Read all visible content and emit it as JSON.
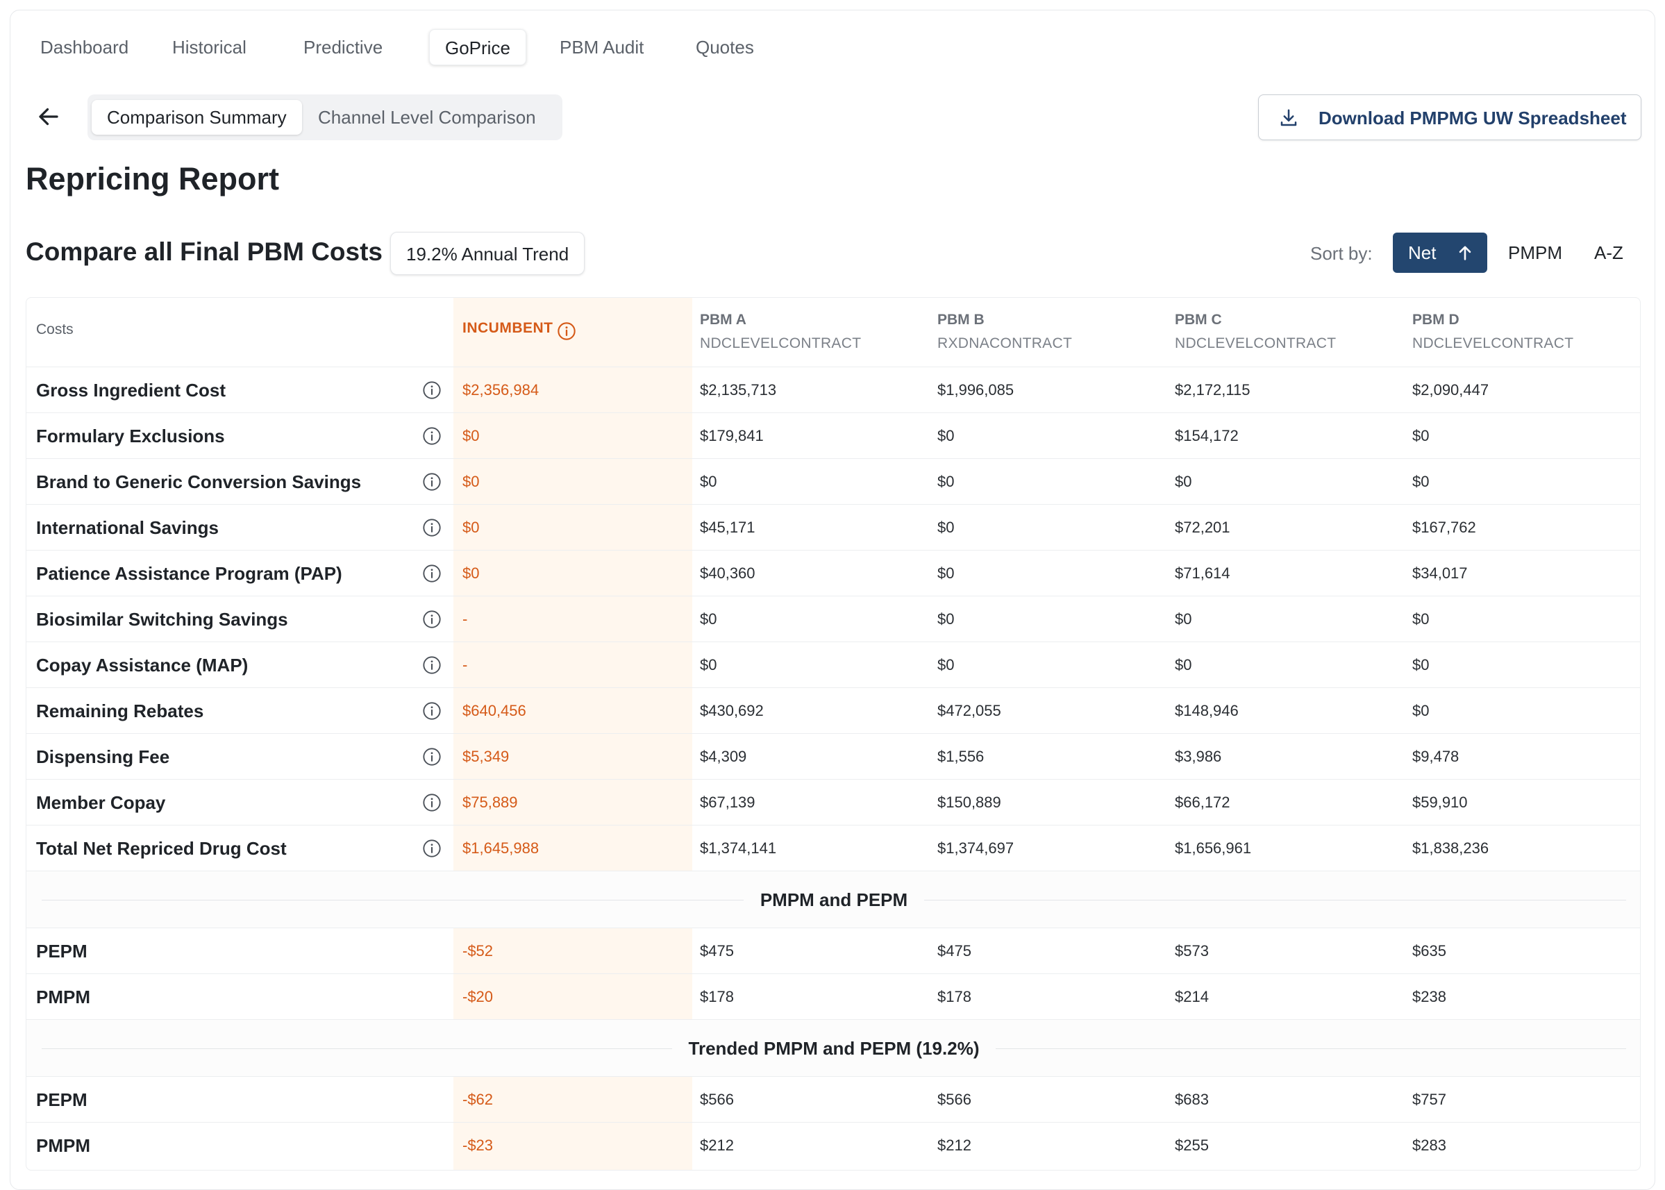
{
  "nav": {
    "tabs": [
      {
        "label": "Dashboard"
      },
      {
        "label": "Historical"
      },
      {
        "label": "Predictive"
      },
      {
        "label": "GoPrice"
      },
      {
        "label": "PBM Audit"
      },
      {
        "label": "Quotes"
      }
    ],
    "active_tab": "GoPrice"
  },
  "view_toggle": {
    "items": [
      {
        "label": "Comparison Summary"
      },
      {
        "label": "Channel Level Comparison"
      }
    ],
    "active": "Comparison Summary"
  },
  "download_button": {
    "label": "Download PMPMG UW Spreadsheet",
    "icon": "download-icon"
  },
  "page_title": "Repricing Report",
  "section_title": "Compare all Final PBM Costs",
  "trend_badge": "19.2% Annual Trend",
  "sort": {
    "label": "Sort by:",
    "options": [
      {
        "label": "Net"
      },
      {
        "label": "PMPM"
      },
      {
        "label": "A-Z"
      }
    ],
    "active": "Net",
    "direction_icon": "arrow-up-icon"
  },
  "colors": {
    "accent": "#23466f",
    "incumbent": "#d55a18",
    "incumbent_bg": "#fff7ee"
  },
  "table": {
    "costs_header": "Costs",
    "incumbent_header": "INCUMBENT",
    "pbms": [
      {
        "name": "PBM A",
        "contract": "NDCLEVELCONTRACT"
      },
      {
        "name": "PBM B",
        "contract": "RXDNACONTRACT"
      },
      {
        "name": "PBM C",
        "contract": "NDCLEVELCONTRACT"
      },
      {
        "name": "PBM D",
        "contract": "NDCLEVELCONTRACT"
      }
    ],
    "rows": [
      {
        "label": "Gross Ingredient Cost",
        "incumbent": "$2,356,984",
        "values": [
          "$2,135,713",
          "$1,996,085",
          "$2,172,115",
          "$2,090,447"
        ]
      },
      {
        "label": "Formulary Exclusions",
        "incumbent": "$0",
        "values": [
          "$179,841",
          "$0",
          "$154,172",
          "$0"
        ]
      },
      {
        "label": "Brand to Generic Conversion Savings",
        "incumbent": "$0",
        "values": [
          "$0",
          "$0",
          "$0",
          "$0"
        ]
      },
      {
        "label": "International Savings",
        "incumbent": "$0",
        "values": [
          "$45,171",
          "$0",
          "$72,201",
          "$167,762"
        ]
      },
      {
        "label": "Patience Assistance Program (PAP)",
        "incumbent": "$0",
        "values": [
          "$40,360",
          "$0",
          "$71,614",
          "$34,017"
        ]
      },
      {
        "label": "Biosimilar Switching Savings",
        "incumbent": "-",
        "values": [
          "$0",
          "$0",
          "$0",
          "$0"
        ]
      },
      {
        "label": "Copay Assistance (MAP)",
        "incumbent": "-",
        "values": [
          "$0",
          "$0",
          "$0",
          "$0"
        ]
      },
      {
        "label": "Remaining Rebates",
        "incumbent": "$640,456",
        "values": [
          "$430,692",
          "$472,055",
          "$148,946",
          "$0"
        ]
      },
      {
        "label": "Dispensing Fee",
        "incumbent": "$5,349",
        "values": [
          "$4,309",
          "$1,556",
          "$3,986",
          "$9,478"
        ]
      },
      {
        "label": "Member Copay",
        "incumbent": "$75,889",
        "values": [
          "$67,139",
          "$150,889",
          "$66,172",
          "$59,910"
        ]
      },
      {
        "label": "Total Net Repriced Drug Cost",
        "incumbent": "$1,645,988",
        "values": [
          "$1,374,141",
          "$1,374,697",
          "$1,656,961",
          "$1,838,236"
        ]
      }
    ],
    "sections": [
      {
        "title": "PMPM and PEPM",
        "rows": [
          {
            "label": "PEPM",
            "incumbent": "-$52",
            "values": [
              "$475",
              "$475",
              "$573",
              "$635"
            ]
          },
          {
            "label": "PMPM",
            "incumbent": "-$20",
            "values": [
              "$178",
              "$178",
              "$214",
              "$238"
            ]
          }
        ]
      },
      {
        "title": "Trended PMPM and PEPM (19.2%)",
        "rows": [
          {
            "label": "PEPM",
            "incumbent": "-$62",
            "values": [
              "$566",
              "$566",
              "$683",
              "$757"
            ]
          },
          {
            "label": "PMPM",
            "incumbent": "-$23",
            "values": [
              "$212",
              "$212",
              "$255",
              "$283"
            ]
          }
        ]
      }
    ]
  }
}
